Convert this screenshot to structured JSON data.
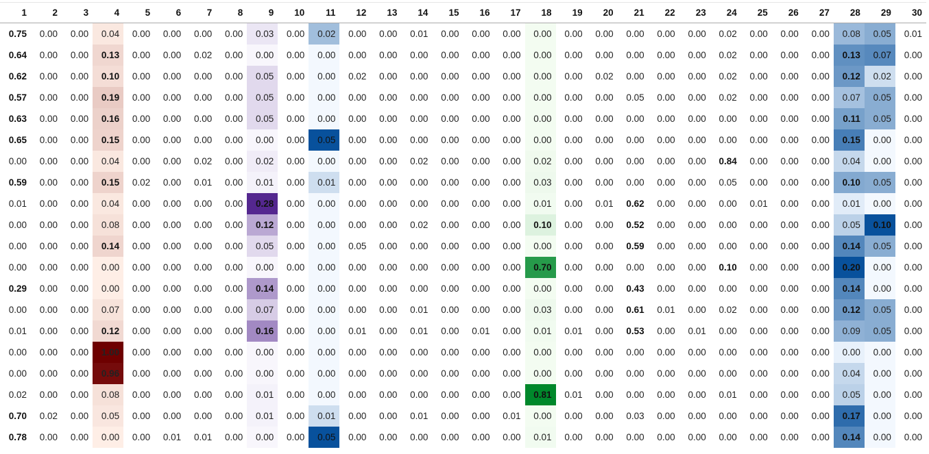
{
  "chart_data": {
    "type": "heatmap",
    "columns": [
      "1",
      "2",
      "3",
      "4",
      "5",
      "6",
      "7",
      "8",
      "9",
      "10",
      "11",
      "12",
      "13",
      "14",
      "15",
      "16",
      "17",
      "18",
      "19",
      "20",
      "21",
      "22",
      "23",
      "24",
      "25",
      "26",
      "27",
      "28",
      "29",
      "30"
    ],
    "rows": [
      [
        "0.75",
        "0.00",
        "0.00",
        "0.04",
        "0.00",
        "0.00",
        "0.00",
        "0.00",
        "0.03",
        "0.00",
        "0.02",
        "0.00",
        "0.00",
        "0.01",
        "0.00",
        "0.00",
        "0.00",
        "0.00",
        "0.00",
        "0.00",
        "0.00",
        "0.00",
        "0.00",
        "0.02",
        "0.00",
        "0.00",
        "0.00",
        "0.08",
        "0.05",
        "0.01"
      ],
      [
        "0.64",
        "0.00",
        "0.00",
        "0.13",
        "0.00",
        "0.00",
        "0.02",
        "0.00",
        "0.00",
        "0.00",
        "0.00",
        "0.00",
        "0.00",
        "0.00",
        "0.00",
        "0.00",
        "0.00",
        "0.00",
        "0.00",
        "0.00",
        "0.00",
        "0.00",
        "0.00",
        "0.02",
        "0.00",
        "0.00",
        "0.00",
        "0.13",
        "0.07",
        "0.00"
      ],
      [
        "0.62",
        "0.00",
        "0.00",
        "0.10",
        "0.00",
        "0.00",
        "0.00",
        "0.00",
        "0.05",
        "0.00",
        "0.00",
        "0.02",
        "0.00",
        "0.00",
        "0.00",
        "0.00",
        "0.00",
        "0.00",
        "0.00",
        "0.02",
        "0.00",
        "0.00",
        "0.00",
        "0.02",
        "0.00",
        "0.00",
        "0.00",
        "0.12",
        "0.02",
        "0.00"
      ],
      [
        "0.57",
        "0.00",
        "0.00",
        "0.19",
        "0.00",
        "0.00",
        "0.00",
        "0.00",
        "0.05",
        "0.00",
        "0.00",
        "0.00",
        "0.00",
        "0.00",
        "0.00",
        "0.00",
        "0.00",
        "0.00",
        "0.00",
        "0.00",
        "0.05",
        "0.00",
        "0.00",
        "0.02",
        "0.00",
        "0.00",
        "0.00",
        "0.07",
        "0.05",
        "0.00"
      ],
      [
        "0.63",
        "0.00",
        "0.00",
        "0.16",
        "0.00",
        "0.00",
        "0.00",
        "0.00",
        "0.05",
        "0.00",
        "0.00",
        "0.00",
        "0.00",
        "0.00",
        "0.00",
        "0.00",
        "0.00",
        "0.00",
        "0.00",
        "0.00",
        "0.00",
        "0.00",
        "0.00",
        "0.00",
        "0.00",
        "0.00",
        "0.00",
        "0.11",
        "0.05",
        "0.00"
      ],
      [
        "0.65",
        "0.00",
        "0.00",
        "0.15",
        "0.00",
        "0.00",
        "0.00",
        "0.00",
        "0.00",
        "0.00",
        "0.05",
        "0.00",
        "0.00",
        "0.00",
        "0.00",
        "0.00",
        "0.00",
        "0.00",
        "0.00",
        "0.00",
        "0.00",
        "0.00",
        "0.00",
        "0.00",
        "0.00",
        "0.00",
        "0.00",
        "0.15",
        "0.00",
        "0.00"
      ],
      [
        "0.00",
        "0.00",
        "0.00",
        "0.04",
        "0.00",
        "0.00",
        "0.02",
        "0.00",
        "0.02",
        "0.00",
        "0.00",
        "0.00",
        "0.00",
        "0.02",
        "0.00",
        "0.00",
        "0.00",
        "0.02",
        "0.00",
        "0.00",
        "0.00",
        "0.00",
        "0.00",
        "0.84",
        "0.00",
        "0.00",
        "0.00",
        "0.04",
        "0.00",
        "0.00"
      ],
      [
        "0.59",
        "0.00",
        "0.00",
        "0.15",
        "0.02",
        "0.00",
        "0.01",
        "0.00",
        "0.01",
        "0.00",
        "0.01",
        "0.00",
        "0.00",
        "0.00",
        "0.00",
        "0.00",
        "0.00",
        "0.03",
        "0.00",
        "0.00",
        "0.00",
        "0.00",
        "0.00",
        "0.05",
        "0.00",
        "0.00",
        "0.00",
        "0.10",
        "0.05",
        "0.00"
      ],
      [
        "0.01",
        "0.00",
        "0.00",
        "0.04",
        "0.00",
        "0.00",
        "0.00",
        "0.00",
        "0.28",
        "0.00",
        "0.00",
        "0.00",
        "0.00",
        "0.00",
        "0.00",
        "0.00",
        "0.00",
        "0.01",
        "0.00",
        "0.01",
        "0.62",
        "0.00",
        "0.00",
        "0.00",
        "0.01",
        "0.00",
        "0.00",
        "0.01",
        "0.00",
        "0.00"
      ],
      [
        "0.00",
        "0.00",
        "0.00",
        "0.08",
        "0.00",
        "0.00",
        "0.00",
        "0.00",
        "0.12",
        "0.00",
        "0.00",
        "0.00",
        "0.00",
        "0.02",
        "0.00",
        "0.00",
        "0.00",
        "0.10",
        "0.00",
        "0.00",
        "0.52",
        "0.00",
        "0.00",
        "0.00",
        "0.00",
        "0.00",
        "0.00",
        "0.05",
        "0.10",
        "0.00"
      ],
      [
        "0.00",
        "0.00",
        "0.00",
        "0.14",
        "0.00",
        "0.00",
        "0.00",
        "0.00",
        "0.05",
        "0.00",
        "0.00",
        "0.05",
        "0.00",
        "0.00",
        "0.00",
        "0.00",
        "0.00",
        "0.00",
        "0.00",
        "0.00",
        "0.59",
        "0.00",
        "0.00",
        "0.00",
        "0.00",
        "0.00",
        "0.00",
        "0.14",
        "0.05",
        "0.00"
      ],
      [
        "0.00",
        "0.00",
        "0.00",
        "0.00",
        "0.00",
        "0.00",
        "0.00",
        "0.00",
        "0.00",
        "0.00",
        "0.00",
        "0.00",
        "0.00",
        "0.00",
        "0.00",
        "0.00",
        "0.00",
        "0.70",
        "0.00",
        "0.00",
        "0.00",
        "0.00",
        "0.00",
        "0.10",
        "0.00",
        "0.00",
        "0.00",
        "0.20",
        "0.00",
        "0.00"
      ],
      [
        "0.29",
        "0.00",
        "0.00",
        "0.00",
        "0.00",
        "0.00",
        "0.00",
        "0.00",
        "0.14",
        "0.00",
        "0.00",
        "0.00",
        "0.00",
        "0.00",
        "0.00",
        "0.00",
        "0.00",
        "0.00",
        "0.00",
        "0.00",
        "0.43",
        "0.00",
        "0.00",
        "0.00",
        "0.00",
        "0.00",
        "0.00",
        "0.14",
        "0.00",
        "0.00"
      ],
      [
        "0.00",
        "0.00",
        "0.00",
        "0.07",
        "0.00",
        "0.00",
        "0.00",
        "0.00",
        "0.07",
        "0.00",
        "0.00",
        "0.00",
        "0.00",
        "0.01",
        "0.00",
        "0.00",
        "0.00",
        "0.03",
        "0.00",
        "0.00",
        "0.61",
        "0.01",
        "0.00",
        "0.02",
        "0.00",
        "0.00",
        "0.00",
        "0.12",
        "0.05",
        "0.00"
      ],
      [
        "0.01",
        "0.00",
        "0.00",
        "0.12",
        "0.00",
        "0.00",
        "0.00",
        "0.00",
        "0.16",
        "0.00",
        "0.00",
        "0.01",
        "0.00",
        "0.01",
        "0.00",
        "0.01",
        "0.00",
        "0.01",
        "0.01",
        "0.00",
        "0.53",
        "0.00",
        "0.01",
        "0.00",
        "0.00",
        "0.00",
        "0.00",
        "0.09",
        "0.05",
        "0.00"
      ],
      [
        "0.00",
        "0.00",
        "0.00",
        "1.00",
        "0.00",
        "0.00",
        "0.00",
        "0.00",
        "0.00",
        "0.00",
        "0.00",
        "0.00",
        "0.00",
        "0.00",
        "0.00",
        "0.00",
        "0.00",
        "0.00",
        "0.00",
        "0.00",
        "0.00",
        "0.00",
        "0.00",
        "0.00",
        "0.00",
        "0.00",
        "0.00",
        "0.00",
        "0.00",
        "0.00"
      ],
      [
        "0.00",
        "0.00",
        "0.00",
        "0.96",
        "0.00",
        "0.00",
        "0.00",
        "0.00",
        "0.00",
        "0.00",
        "0.00",
        "0.00",
        "0.00",
        "0.00",
        "0.00",
        "0.00",
        "0.00",
        "0.00",
        "0.00",
        "0.00",
        "0.00",
        "0.00",
        "0.00",
        "0.00",
        "0.00",
        "0.00",
        "0.00",
        "0.04",
        "0.00",
        "0.00"
      ],
      [
        "0.02",
        "0.00",
        "0.00",
        "0.08",
        "0.00",
        "0.00",
        "0.00",
        "0.00",
        "0.01",
        "0.00",
        "0.00",
        "0.00",
        "0.00",
        "0.00",
        "0.00",
        "0.00",
        "0.00",
        "0.81",
        "0.01",
        "0.00",
        "0.00",
        "0.00",
        "0.00",
        "0.01",
        "0.00",
        "0.00",
        "0.00",
        "0.05",
        "0.00",
        "0.00"
      ],
      [
        "0.70",
        "0.02",
        "0.00",
        "0.05",
        "0.00",
        "0.00",
        "0.00",
        "0.00",
        "0.01",
        "0.00",
        "0.01",
        "0.00",
        "0.00",
        "0.01",
        "0.00",
        "0.00",
        "0.01",
        "0.00",
        "0.00",
        "0.00",
        "0.03",
        "0.00",
        "0.00",
        "0.00",
        "0.00",
        "0.00",
        "0.00",
        "0.17",
        "0.00",
        "0.00"
      ],
      [
        "0.78",
        "0.00",
        "0.00",
        "0.00",
        "0.00",
        "0.01",
        "0.01",
        "0.00",
        "0.00",
        "0.00",
        "0.05",
        "0.00",
        "0.00",
        "0.00",
        "0.00",
        "0.00",
        "0.00",
        "0.01",
        "0.00",
        "0.00",
        "0.00",
        "0.00",
        "0.00",
        "0.00",
        "0.00",
        "0.00",
        "0.00",
        "0.14",
        "0.00",
        "0.00"
      ]
    ],
    "column_colormaps": {
      "4": "#fcbba1-#67000d reds",
      "9": "#efedf5-#54278f purples",
      "11": "#deebf7-#08519c blues",
      "18": "#e5f5e0-#00882b greens",
      "28": "#deebf7-#08519c blues",
      "29": "#deebf7-#08519c blues"
    },
    "bold_rule": "row maximum and values >= 0.10 shown bold"
  }
}
